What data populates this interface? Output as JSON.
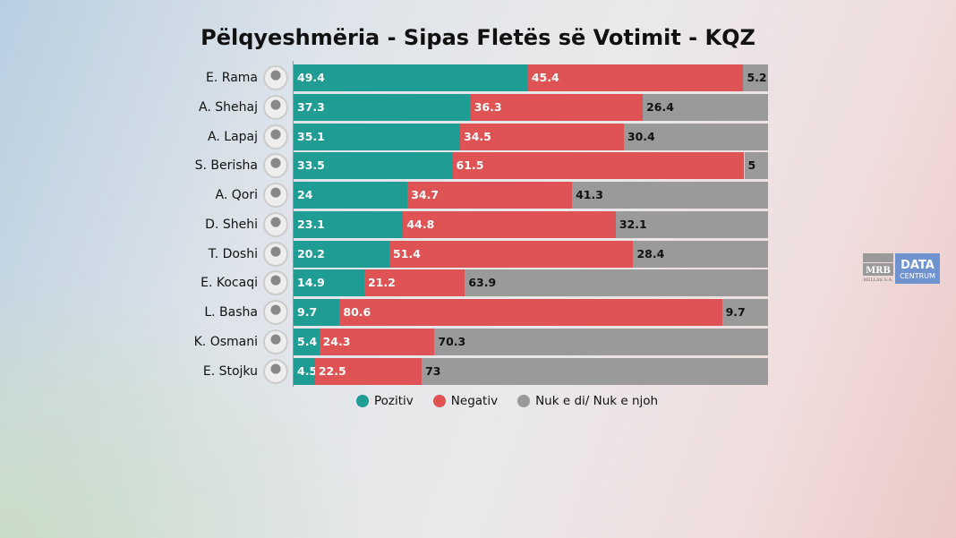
{
  "chart_data": {
    "type": "bar",
    "stacked": true,
    "orientation": "horizontal",
    "title": "Pëlqyeshmëria - Sipas Fletës së Votimit - KQZ",
    "categories": [
      "E. Rama",
      "A. Shehaj",
      "A. Lapaj",
      "S. Berisha",
      "A. Qori",
      "D. Shehi",
      "T. Doshi",
      "E. Kocaqi",
      "L. Basha",
      "K. Osmani",
      "E. Stojku"
    ],
    "series": [
      {
        "name": "Pozitiv",
        "color": "#1f9c94",
        "values": [
          49.4,
          37.3,
          35.1,
          33.5,
          24,
          23.1,
          20.2,
          14.9,
          9.7,
          5.4,
          4.5
        ]
      },
      {
        "name": "Negativ",
        "color": "#e05355",
        "values": [
          45.4,
          36.3,
          34.5,
          61.5,
          34.7,
          44.8,
          51.4,
          21.2,
          80.6,
          24.3,
          22.5
        ]
      },
      {
        "name": "Nuk e di/ Nuk e njoh",
        "color": "#9a9a9a",
        "values": [
          5.2,
          26.4,
          30.4,
          5,
          41.3,
          32.1,
          28.4,
          63.9,
          9.7,
          70.3,
          73
        ]
      }
    ],
    "xlim": [
      0,
      100
    ],
    "legend": "bottom",
    "grid": false
  },
  "logo": {
    "mrb": "MRB",
    "hellas": "HELLAS S.A.",
    "data": "DATA",
    "centrum": "CENTRUM"
  }
}
